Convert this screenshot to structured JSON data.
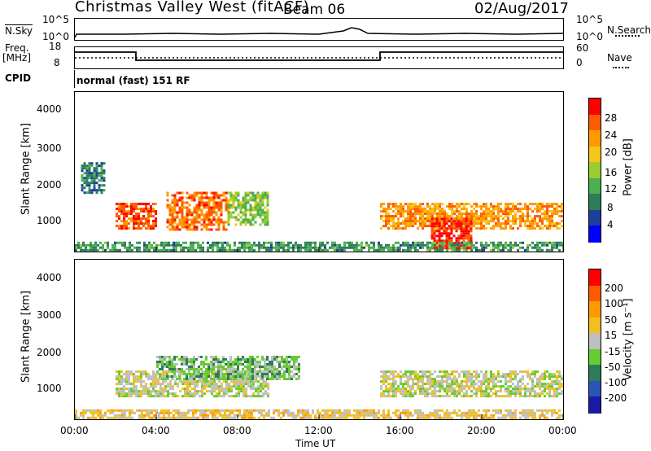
{
  "header": {
    "title": "Christmas Valley West (fitACF)",
    "beam": "Beam 06",
    "date": "02/Aug/2017"
  },
  "nsky": {
    "left_label": "N.Sky",
    "left_ticks": [
      "10^5",
      "10^0"
    ],
    "right_label": "N.Search",
    "right_ticks": [
      "10^5",
      "10^0"
    ]
  },
  "freq": {
    "left_label_line1": "Freq.",
    "left_label_line2": "[MHz]",
    "left_ticks": [
      "18",
      "8"
    ],
    "right_label": "Nave",
    "right_ticks": [
      "60",
      "0"
    ]
  },
  "cpid": {
    "label": "CPID",
    "text": "normal (fast) 151 RF"
  },
  "power_panel": {
    "ylabel": "Slant Range [km]",
    "yticks": [
      "4000",
      "3000",
      "2000",
      "1000"
    ],
    "colorbar_label": "Power [dB]",
    "colorbar_ticks": [
      "28",
      "24",
      "20",
      "16",
      "12",
      "8",
      "4"
    ],
    "colors": [
      "#0000ff",
      "#1e3f9e",
      "#2e7d5a",
      "#4caf50",
      "#9acd32",
      "#f5c518",
      "#ff9900",
      "#ff5a00",
      "#ff0000"
    ]
  },
  "velocity_panel": {
    "ylabel": "Slant Range [km]",
    "yticks": [
      "4000",
      "3000",
      "2000",
      "1000"
    ],
    "colorbar_label": "Velocity [m s⁻¹]",
    "colorbar_ticks": [
      "200",
      "100",
      "50",
      "15",
      "-15",
      "-50",
      "-100",
      "-200"
    ],
    "colors": [
      "#1a1aa6",
      "#2a55b5",
      "#2e7d5a",
      "#66cc33",
      "#bfbfbf",
      "#f0c020",
      "#ff9900",
      "#ff5a00",
      "#ff0000"
    ]
  },
  "xaxis": {
    "ticks": [
      "00:00",
      "04:00",
      "08:00",
      "12:00",
      "16:00",
      "20:00",
      "00:00"
    ],
    "label": "Time UT"
  },
  "chart_data": {
    "type": "heatmap",
    "title": "Christmas Valley West (fitACF)",
    "x_range_hours": [
      0,
      24
    ],
    "y_range_km": [
      180,
      4500
    ],
    "panels": [
      {
        "name": "Power",
        "unit": "dB",
        "scale": [
          0,
          30
        ],
        "regions": [
          {
            "t0": 2.0,
            "t1": 4.0,
            "r0": 800,
            "r1": 1500,
            "value": 26
          },
          {
            "t0": 4.5,
            "t1": 7.5,
            "r0": 800,
            "r1": 1800,
            "value": 24
          },
          {
            "t0": 7.5,
            "t1": 9.5,
            "r0": 900,
            "r1": 1800,
            "value": 14
          },
          {
            "t0": 0.3,
            "t1": 1.5,
            "r0": 1800,
            "r1": 2600,
            "value": 8
          },
          {
            "t0": 15.0,
            "t1": 24.0,
            "r0": 800,
            "r1": 1500,
            "value": 22
          },
          {
            "t0": 17.5,
            "t1": 19.5,
            "r0": 300,
            "r1": 1100,
            "value": 28
          },
          {
            "t0": 0.0,
            "t1": 24.0,
            "r0": 180,
            "r1": 450,
            "value": 10
          }
        ]
      },
      {
        "name": "Velocity",
        "unit": "m s⁻¹",
        "scale": [
          -200,
          200
        ],
        "regions": [
          {
            "t0": 2.0,
            "t1": 9.5,
            "r0": 800,
            "r1": 1500,
            "value": 0
          },
          {
            "t0": 4.0,
            "t1": 11.0,
            "r0": 1300,
            "r1": 1900,
            "value": -40
          },
          {
            "t0": 15.0,
            "t1": 24.0,
            "r0": 800,
            "r1": 1500,
            "value": 0
          },
          {
            "t0": 0.0,
            "t1": 24.0,
            "r0": 180,
            "r1": 450,
            "value": 30
          }
        ]
      }
    ]
  }
}
